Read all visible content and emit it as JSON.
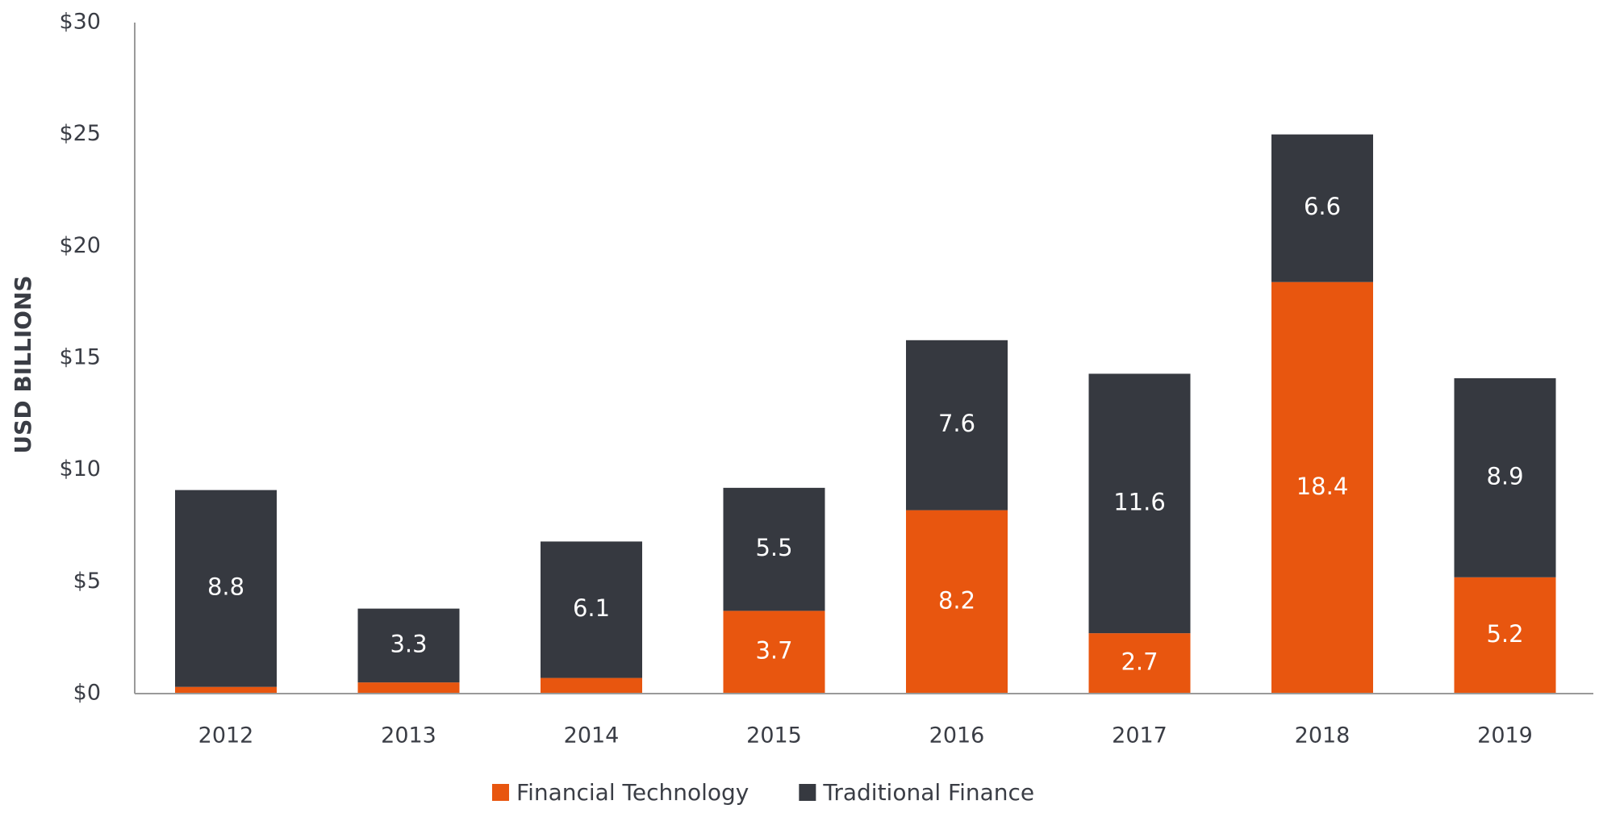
{
  "chart_data": {
    "type": "bar",
    "stacked": true,
    "title": "",
    "xlabel": "",
    "ylabel": "USD BILLIONS",
    "ylim": [
      0,
      30
    ],
    "yticks": [
      0,
      5,
      10,
      15,
      20,
      25,
      30
    ],
    "ytick_labels": [
      "$0",
      "$5",
      "$10",
      "$15",
      "$20",
      "$25",
      "$30"
    ],
    "categories": [
      "2012",
      "2013",
      "2014",
      "2015",
      "2016",
      "2017",
      "2018",
      "2019"
    ],
    "grid": false,
    "legend_position": "bottom",
    "series": [
      {
        "name": "Financial Technology",
        "color": "#E8560F",
        "values": [
          0.3,
          0.5,
          0.7,
          3.7,
          8.2,
          2.7,
          18.4,
          5.2
        ],
        "labels": [
          "",
          "",
          "",
          "3.7",
          "8.2",
          "2.7",
          "18.4",
          "5.2"
        ]
      },
      {
        "name": "Traditional Finance",
        "color": "#363940",
        "values": [
          8.8,
          3.3,
          6.1,
          5.5,
          7.6,
          11.6,
          6.6,
          8.9
        ],
        "labels": [
          "8.8",
          "3.3",
          "6.1",
          "5.5",
          "7.6",
          "11.6",
          "6.6",
          "8.9"
        ]
      }
    ]
  }
}
